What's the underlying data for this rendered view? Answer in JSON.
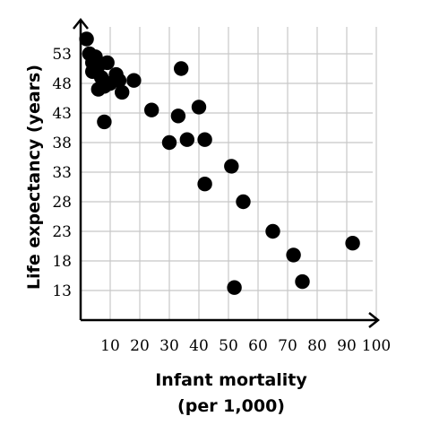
{
  "chart_data": {
    "type": "scatter",
    "title": "",
    "xlabel_lines": [
      "Infant mortality",
      "(per 1,000)"
    ],
    "ylabel": "Life expectancy (years)",
    "xlim": [
      0,
      100
    ],
    "ylim": [
      8,
      58
    ],
    "x_ticks": [
      10,
      20,
      30,
      40,
      50,
      60,
      70,
      80,
      90,
      100
    ],
    "y_ticks": [
      13,
      18,
      23,
      28,
      33,
      38,
      43,
      48,
      53
    ],
    "grid": true,
    "point_color": "#000000",
    "points": [
      {
        "x": 2,
        "y": 55.5
      },
      {
        "x": 3,
        "y": 53
      },
      {
        "x": 4,
        "y": 51.5
      },
      {
        "x": 4,
        "y": 50
      },
      {
        "x": 5,
        "y": 52.5
      },
      {
        "x": 6,
        "y": 51
      },
      {
        "x": 6,
        "y": 47
      },
      {
        "x": 7,
        "y": 49
      },
      {
        "x": 8,
        "y": 47.5
      },
      {
        "x": 8,
        "y": 41.5
      },
      {
        "x": 9,
        "y": 51.5
      },
      {
        "x": 10,
        "y": 48
      },
      {
        "x": 12,
        "y": 49.5
      },
      {
        "x": 13,
        "y": 48.5
      },
      {
        "x": 14,
        "y": 46.5
      },
      {
        "x": 18,
        "y": 48.5
      },
      {
        "x": 24,
        "y": 43.5
      },
      {
        "x": 30,
        "y": 38
      },
      {
        "x": 33,
        "y": 42.5
      },
      {
        "x": 34,
        "y": 50.5
      },
      {
        "x": 36,
        "y": 38.5
      },
      {
        "x": 40,
        "y": 44
      },
      {
        "x": 42,
        "y": 38.5
      },
      {
        "x": 42,
        "y": 31
      },
      {
        "x": 51,
        "y": 34
      },
      {
        "x": 52,
        "y": 13.5
      },
      {
        "x": 55,
        "y": 28
      },
      {
        "x": 65,
        "y": 23
      },
      {
        "x": 72,
        "y": 19
      },
      {
        "x": 75,
        "y": 14.5
      },
      {
        "x": 92,
        "y": 21
      }
    ]
  }
}
